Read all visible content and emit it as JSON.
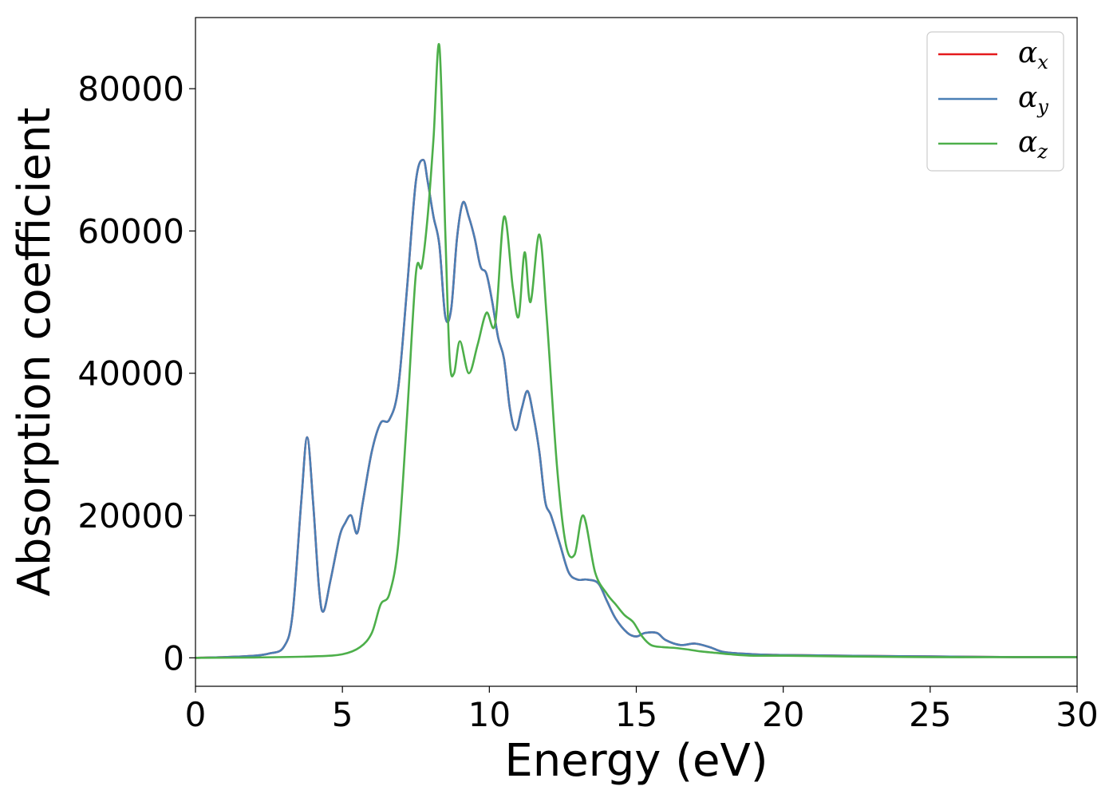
{
  "chart_data": {
    "type": "line",
    "title": "",
    "xlabel": "Energy (eV)",
    "ylabel": "Absorption coefficient",
    "xlim": [
      0,
      30
    ],
    "ylim": [
      -4000,
      90000
    ],
    "xticks": [
      0,
      5,
      10,
      15,
      20,
      25,
      30
    ],
    "yticks": [
      0,
      20000,
      40000,
      60000,
      80000
    ],
    "grid": false,
    "legend_position": "top-right",
    "series": [
      {
        "name_base": "α",
        "name_sub": "x",
        "color": "#e41a1c",
        "x": [
          0,
          1,
          2,
          2.5,
          3,
          3.3,
          3.6,
          3.8,
          4.0,
          4.2,
          4.35,
          4.6,
          4.9,
          5.1,
          5.3,
          5.5,
          5.7,
          6.0,
          6.3,
          6.6,
          6.9,
          7.2,
          7.5,
          7.75,
          7.9,
          8.1,
          8.3,
          8.5,
          8.7,
          8.9,
          9.1,
          9.3,
          9.5,
          9.7,
          9.9,
          10.1,
          10.3,
          10.5,
          10.7,
          10.9,
          11.1,
          11.3,
          11.5,
          11.7,
          11.9,
          12.1,
          12.4,
          12.7,
          13.0,
          13.3,
          13.7,
          14.0,
          14.3,
          14.7,
          15.0,
          15.3,
          15.7,
          16.0,
          16.5,
          17.0,
          17.5,
          18.0,
          19.0,
          20.0,
          22.0,
          25.0,
          28.0,
          30.0
        ],
        "y": [
          0,
          100,
          300,
          600,
          1500,
          6000,
          22000,
          31000,
          22000,
          10000,
          6500,
          11000,
          17000,
          19000,
          20000,
          17500,
          22000,
          29000,
          33000,
          33500,
          38000,
          52000,
          67000,
          70000,
          67000,
          62000,
          58000,
          48000,
          49000,
          59000,
          64000,
          62000,
          59000,
          55000,
          54000,
          50000,
          45000,
          42000,
          35000,
          32000,
          35000,
          37500,
          34000,
          29000,
          22000,
          20000,
          16000,
          12000,
          11000,
          11000,
          10500,
          8000,
          5500,
          3500,
          3000,
          3500,
          3500,
          2500,
          1800,
          2000,
          1500,
          800,
          500,
          400,
          300,
          200,
          100,
          100
        ]
      },
      {
        "name_base": "α",
        "name_sub": "y",
        "color": "#4a7fb5",
        "x": [
          0,
          1,
          2,
          2.5,
          3,
          3.3,
          3.6,
          3.8,
          4.0,
          4.2,
          4.35,
          4.6,
          4.9,
          5.1,
          5.3,
          5.5,
          5.7,
          6.0,
          6.3,
          6.6,
          6.9,
          7.2,
          7.5,
          7.75,
          7.9,
          8.1,
          8.3,
          8.5,
          8.7,
          8.9,
          9.1,
          9.3,
          9.5,
          9.7,
          9.9,
          10.1,
          10.3,
          10.5,
          10.7,
          10.9,
          11.1,
          11.3,
          11.5,
          11.7,
          11.9,
          12.1,
          12.4,
          12.7,
          13.0,
          13.3,
          13.7,
          14.0,
          14.3,
          14.7,
          15.0,
          15.3,
          15.7,
          16.0,
          16.5,
          17.0,
          17.5,
          18.0,
          19.0,
          20.0,
          22.0,
          25.0,
          28.0,
          30.0
        ],
        "y": [
          0,
          100,
          300,
          600,
          1500,
          6000,
          22000,
          31000,
          22000,
          10000,
          6500,
          11000,
          17000,
          19000,
          20000,
          17500,
          22000,
          29000,
          33000,
          33500,
          38000,
          52000,
          67000,
          70000,
          67000,
          62000,
          58000,
          48000,
          49000,
          59000,
          64000,
          62000,
          59000,
          55000,
          54000,
          50000,
          45000,
          42000,
          35000,
          32000,
          35000,
          37500,
          34000,
          29000,
          22000,
          20000,
          16000,
          12000,
          11000,
          11000,
          10500,
          8000,
          5500,
          3500,
          3000,
          3500,
          3500,
          2500,
          1800,
          2000,
          1500,
          800,
          500,
          400,
          300,
          200,
          100,
          100
        ]
      },
      {
        "name_base": "α",
        "name_sub": "z",
        "color": "#4daf4a",
        "x": [
          0,
          2,
          4,
          5,
          5.6,
          6.0,
          6.3,
          6.6,
          6.9,
          7.2,
          7.5,
          7.7,
          7.9,
          8.1,
          8.3,
          8.5,
          8.65,
          8.8,
          9.0,
          9.3,
          9.6,
          9.9,
          10.2,
          10.5,
          10.8,
          11.0,
          11.2,
          11.4,
          11.7,
          11.95,
          12.3,
          12.6,
          12.9,
          13.2,
          13.6,
          14.0,
          14.3,
          14.6,
          14.9,
          15.2,
          15.5,
          15.9,
          16.3,
          16.7,
          17.2,
          17.7,
          18.2,
          19.0,
          20.0,
          22.0,
          25.0,
          28.0,
          30.0
        ],
        "y": [
          0,
          50,
          200,
          500,
          1500,
          3500,
          7500,
          9000,
          16000,
          34000,
          54000,
          55000,
          62000,
          73000,
          86000,
          60000,
          42000,
          40000,
          44500,
          40000,
          44000,
          48500,
          47000,
          62000,
          52000,
          48000,
          57000,
          50000,
          59500,
          48000,
          27000,
          16000,
          14500,
          20000,
          12000,
          9000,
          7500,
          6000,
          5000,
          3000,
          1800,
          1500,
          1400,
          1200,
          900,
          700,
          500,
          300,
          300,
          200,
          100,
          100,
          100
        ]
      }
    ]
  }
}
